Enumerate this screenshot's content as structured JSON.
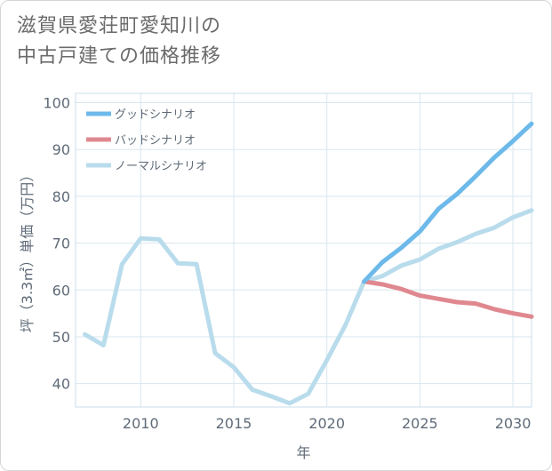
{
  "title_lines": [
    "滋賀県愛荘町愛知川の",
    "中古戸建ての価格推移"
  ],
  "chart_data": {
    "type": "line",
    "xlabel": "年",
    "ylabel": "坪（3.3㎡）単価（万円）",
    "xlim": [
      2006.5,
      2031
    ],
    "ylim": [
      35,
      102
    ],
    "xticks": [
      2010,
      2015,
      2020,
      2025,
      2030
    ],
    "yticks": [
      40,
      50,
      60,
      70,
      80,
      90,
      100
    ],
    "grid": true,
    "legend_position": "top-left",
    "series": [
      {
        "name": "グッドシナリオ",
        "color": "#6cb9ea",
        "x": [
          2022,
          2023,
          2024,
          2025,
          2026,
          2027,
          2028,
          2029,
          2030,
          2031
        ],
        "y": [
          61.8,
          66.0,
          69.0,
          72.5,
          77.3,
          80.5,
          84.3,
          88.3,
          91.8,
          95.5
        ]
      },
      {
        "name": "バッドシナリオ",
        "color": "#e0888f",
        "x": [
          2022,
          2023,
          2024,
          2025,
          2026,
          2027,
          2028,
          2029,
          2030,
          2031
        ],
        "y": [
          61.8,
          61.2,
          60.2,
          58.8,
          58.1,
          57.4,
          57.1,
          55.9,
          55.0,
          54.3
        ]
      },
      {
        "name": "ノーマルシナリオ",
        "color": "#b9dcec",
        "x": [
          2007,
          2008,
          2009,
          2010,
          2011,
          2012,
          2013,
          2014,
          2015,
          2016,
          2017,
          2018,
          2019,
          2020,
          2021,
          2022,
          2023,
          2024,
          2025,
          2026,
          2027,
          2028,
          2029,
          2030,
          2031
        ],
        "y": [
          50.5,
          48.2,
          65.5,
          71.0,
          70.8,
          65.7,
          65.5,
          46.5,
          43.5,
          38.7,
          37.3,
          35.8,
          37.8,
          45.0,
          52.5,
          61.8,
          63.0,
          65.2,
          66.5,
          68.8,
          70.2,
          72.0,
          73.3,
          75.5,
          77.0
        ]
      }
    ]
  }
}
